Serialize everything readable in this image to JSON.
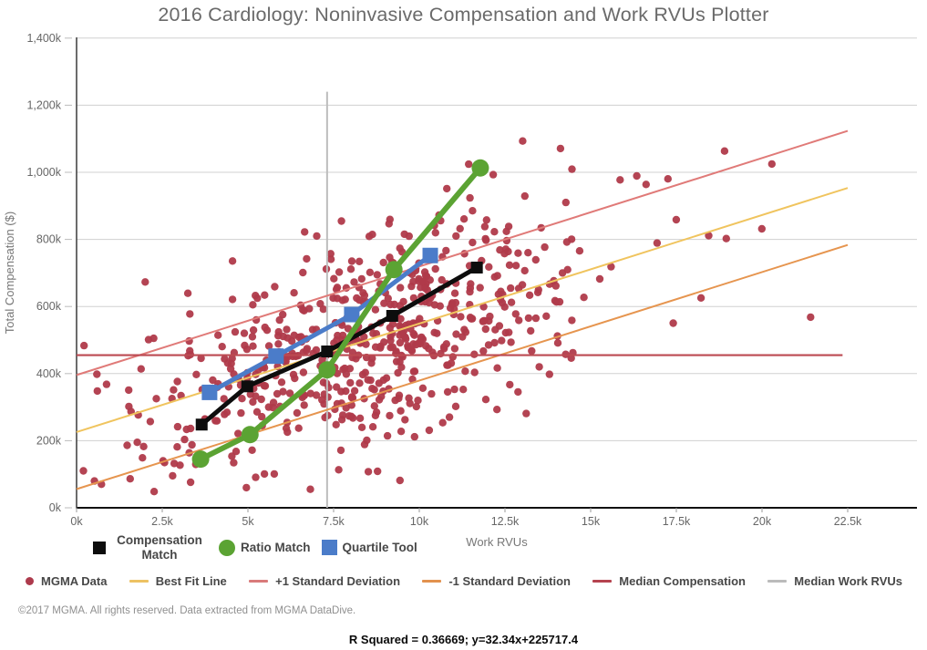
{
  "chart_data": {
    "type": "scatter",
    "title": "2016 Cardiology: Noninvasive Compensation and Work RVUs Plotter",
    "xlabel": "Work RVUs",
    "ylabel": "Total Compensation ($)",
    "x_unit": "RVUs (thousands)",
    "y_unit": "dollars (thousands)",
    "xlim": [
      0,
      24.5
    ],
    "ylim": [
      0,
      1400
    ],
    "grid": "horizontal",
    "x_ticks": [
      {
        "v": 0,
        "label": "0k"
      },
      {
        "v": 2.5,
        "label": "2.5k"
      },
      {
        "v": 5,
        "label": "5k"
      },
      {
        "v": 7.5,
        "label": "7.5k"
      },
      {
        "v": 10,
        "label": "10k"
      },
      {
        "v": 12.5,
        "label": "12.5k"
      },
      {
        "v": 15,
        "label": "15k"
      },
      {
        "v": 17.5,
        "label": "17.5k"
      },
      {
        "v": 20,
        "label": "20k"
      },
      {
        "v": 22.5,
        "label": "22.5k"
      }
    ],
    "y_ticks": [
      {
        "v": 0,
        "label": "0k"
      },
      {
        "v": 200,
        "label": "200k"
      },
      {
        "v": 400,
        "label": "400k"
      },
      {
        "v": 600,
        "label": "600k"
      },
      {
        "v": 800,
        "label": "800k"
      },
      {
        "v": 1000,
        "label": "1,000k"
      },
      {
        "v": 1200,
        "label": "1,200k"
      },
      {
        "v": 1400,
        "label": "1,400k"
      }
    ],
    "series": [
      {
        "id": "compensation-match",
        "name": "Compensation Match",
        "color": "#0d0d0d",
        "marker": "square",
        "marker_size": 13,
        "line_width": 5,
        "points": [
          [
            3.65,
            248
          ],
          [
            4.98,
            362
          ],
          [
            7.31,
            466
          ],
          [
            9.21,
            572
          ],
          [
            11.68,
            716
          ]
        ]
      },
      {
        "id": "quartile-tool",
        "name": "Quartile Tool",
        "color": "#4b7cc9",
        "marker": "square",
        "marker_size": 17,
        "line_width": 5,
        "points": [
          [
            3.88,
            344
          ],
          [
            5.82,
            452
          ],
          [
            8.03,
            576
          ],
          [
            10.32,
            752
          ]
        ]
      },
      {
        "id": "ratio-match",
        "name": "Ratio Match",
        "color": "#5ba333",
        "marker": "circle",
        "marker_size": 19,
        "line_width": 6,
        "points": [
          [
            3.62,
            145
          ],
          [
            5.06,
            218
          ],
          [
            7.31,
            411
          ],
          [
            9.26,
            710
          ],
          [
            11.78,
            1013
          ]
        ]
      }
    ],
    "ref_lines": [
      {
        "id": "median-work-rvus",
        "name": "Median Work RVUs",
        "color": "#bdbdbd",
        "width": 2,
        "points": [
          [
            7.31,
            0
          ],
          [
            7.31,
            1240
          ]
        ]
      },
      {
        "id": "minus-1-sd",
        "name": "-1 Standard Deviation",
        "color": "#e6954f",
        "width": 2,
        "points": [
          [
            0,
            55.7
          ],
          [
            22.5,
            783.4
          ]
        ]
      },
      {
        "id": "best-fit",
        "name": "Best Fit Line",
        "color": "#f0c45e",
        "width": 2,
        "points": [
          [
            0,
            225.7
          ],
          [
            22.5,
            953.4
          ]
        ]
      },
      {
        "id": "plus-1-sd",
        "name": "+1 Standard Deviation",
        "color": "#e07a78",
        "width": 2,
        "points": [
          [
            0,
            395.7
          ],
          [
            22.5,
            1123.4
          ]
        ]
      },
      {
        "id": "median-compensation",
        "name": "Median Compensation",
        "color": "#bc4a52",
        "width": 2.2,
        "points": [
          [
            0,
            455
          ],
          [
            22.35,
            455
          ]
        ]
      }
    ],
    "scatter": {
      "name": "MGMA Data",
      "color": "#b03a4a",
      "count": 620,
      "seed": 123456,
      "x_mean": 8.5,
      "x_sd": 3.3,
      "x_min": 0.15,
      "x_max": 23,
      "far_tail_prob": 0.01,
      "slope": 32.34,
      "intercept": 225.72,
      "noise_sd": 165,
      "y_min": 40,
      "y_max": 1340,
      "note": "cloud approximated from pixels: correlated with best-fit y=32.34x+225717.4, spread ±1 SD"
    }
  },
  "legend_series": {
    "items": [
      {
        "label": "Compensation Match",
        "marker": "square",
        "color": "#0d0d0d"
      },
      {
        "label": "Ratio Match",
        "marker": "circle",
        "color": "#5ba333"
      },
      {
        "label": "Quartile Tool",
        "marker": "square",
        "color": "#4b7cc9"
      }
    ]
  },
  "legend_lines": {
    "items": [
      {
        "label": "MGMA Data",
        "marker": "dot",
        "color": "#ad3a4c"
      },
      {
        "label": "Best Fit Line",
        "marker": "line",
        "color": "#edc263"
      },
      {
        "label": "+1 Standard Deviation",
        "marker": "line",
        "color": "#d97b7b"
      },
      {
        "label": "-1 Standard Deviation",
        "marker": "line",
        "color": "#e2914e"
      },
      {
        "label": "Median Compensation",
        "marker": "line",
        "color": "#b5434f"
      },
      {
        "label": "Median Work RVUs",
        "marker": "line",
        "color": "#bbbbbb"
      }
    ]
  },
  "footer": {
    "copyright": "©2017 MGMA. All rights reserved. Data extracted from MGMA DataDive."
  },
  "stats": {
    "r_squared": 0.36669,
    "equation_label": "R Squared = 0.36669; y=32.34x+225717.4"
  }
}
